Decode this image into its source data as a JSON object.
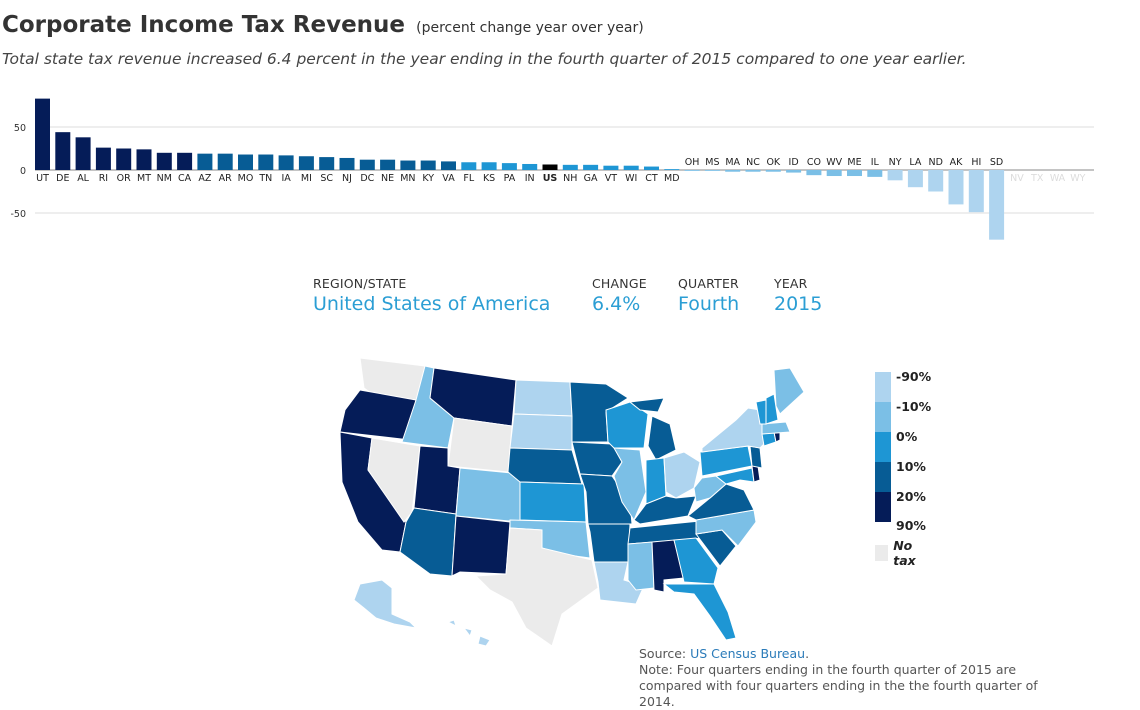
{
  "header": {
    "title": "Corporate Income Tax Revenue",
    "title_note": "(percent change year over year)",
    "subtitle": "Total state tax revenue increased 6.4 percent in the year ending in the fourth quarter of 2015 compared to one year earlier."
  },
  "chart_data": {
    "type": "bar",
    "categories": [
      "UT",
      "DE",
      "AL",
      "RI",
      "OR",
      "MT",
      "NM",
      "CA",
      "AZ",
      "AR",
      "MO",
      "TN",
      "IA",
      "MI",
      "SC",
      "NJ",
      "DC",
      "NE",
      "MN",
      "KY",
      "VA",
      "FL",
      "KS",
      "PA",
      "IN",
      "US",
      "NH",
      "GA",
      "VT",
      "WI",
      "CT",
      "MD",
      "OH",
      "MS",
      "MA",
      "NC",
      "OK",
      "ID",
      "CO",
      "WV",
      "ME",
      "IL",
      "NY",
      "LA",
      "ND",
      "AK",
      "HI",
      "SD",
      "NV",
      "TX",
      "WA",
      "WY"
    ],
    "values": [
      83,
      44,
      38,
      26,
      25,
      24,
      20,
      20,
      19,
      19,
      18,
      18,
      17,
      16,
      15,
      14,
      12,
      12,
      11,
      11,
      10,
      9,
      9,
      8,
      7,
      6.4,
      6,
      6,
      5,
      5,
      4,
      1,
      -1,
      -1,
      -2,
      -2,
      -2,
      -3,
      -6,
      -7,
      -7,
      -8,
      -12,
      -20,
      -25,
      -40,
      -49,
      -81,
      0,
      0,
      0,
      0
    ],
    "no_tax": [
      "NV",
      "TX",
      "WA",
      "WY"
    ],
    "highlight": "US",
    "yticks": [
      50,
      0,
      -50
    ],
    "ylim": [
      -85,
      85
    ],
    "grid": true
  },
  "selection": {
    "region_label": "REGION/STATE",
    "region_value": "United States of America",
    "change_label": "CHANGE",
    "change_value": "6.4%",
    "quarter_label": "QUARTER",
    "quarter_value": "Fourth",
    "year_label": "YEAR",
    "year_value": "2015"
  },
  "legend": {
    "items": [
      {
        "label": "-90%",
        "color": "#aed4ef"
      },
      {
        "label": "-10%",
        "color": "#7bbfe6"
      },
      {
        "label": "0%",
        "color": "#1e96d4"
      },
      {
        "label": "10%",
        "color": "#075c95"
      },
      {
        "label": "20%",
        "color": "#051c58"
      }
    ],
    "bottom_label": "90%",
    "no_tax_label": "No tax",
    "no_tax_color": "#ebebeb",
    "us_color": "#000000"
  },
  "source": {
    "prefix": "Source: ",
    "link_text": "US Census Bureau",
    "suffix": ".",
    "note": "Note: Four quarters ending in the fourth quarter of 2015 are compared with four quarters ending in the the fourth quarter of 2014."
  }
}
